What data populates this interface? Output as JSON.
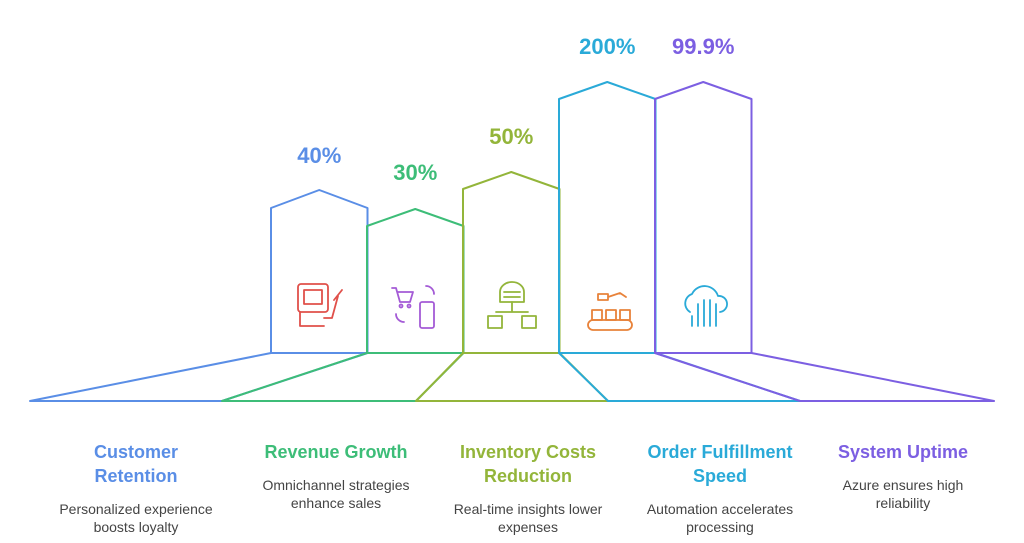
{
  "items": [
    {
      "value": "40%",
      "title_lines": [
        "Customer",
        "Retention"
      ],
      "description_lines": [
        "Personalized experience",
        "boosts loyalty"
      ],
      "color": "#5a8ee6"
    },
    {
      "value": "30%",
      "title_lines": [
        "Revenue Growth"
      ],
      "description_lines": [
        "Omnichannel strategies",
        "enhance sales"
      ],
      "color": "#3dbd78"
    },
    {
      "value": "50%",
      "title_lines": [
        "Inventory Costs",
        "Reduction"
      ],
      "description_lines": [
        "Real-time insights lower",
        "expenses"
      ],
      "color": "#93b53a"
    },
    {
      "value": "200%",
      "title_lines": [
        "Order Fulfillment",
        "Speed"
      ],
      "description_lines": [
        "Automation accelerates",
        "processing"
      ],
      "color": "#2aaad8"
    },
    {
      "value": "99.9%",
      "title_lines": [
        "System Uptime"
      ],
      "description_lines": [
        "Azure ensures high",
        "reliability"
      ],
      "color": "#7c5fe2"
    }
  ]
}
